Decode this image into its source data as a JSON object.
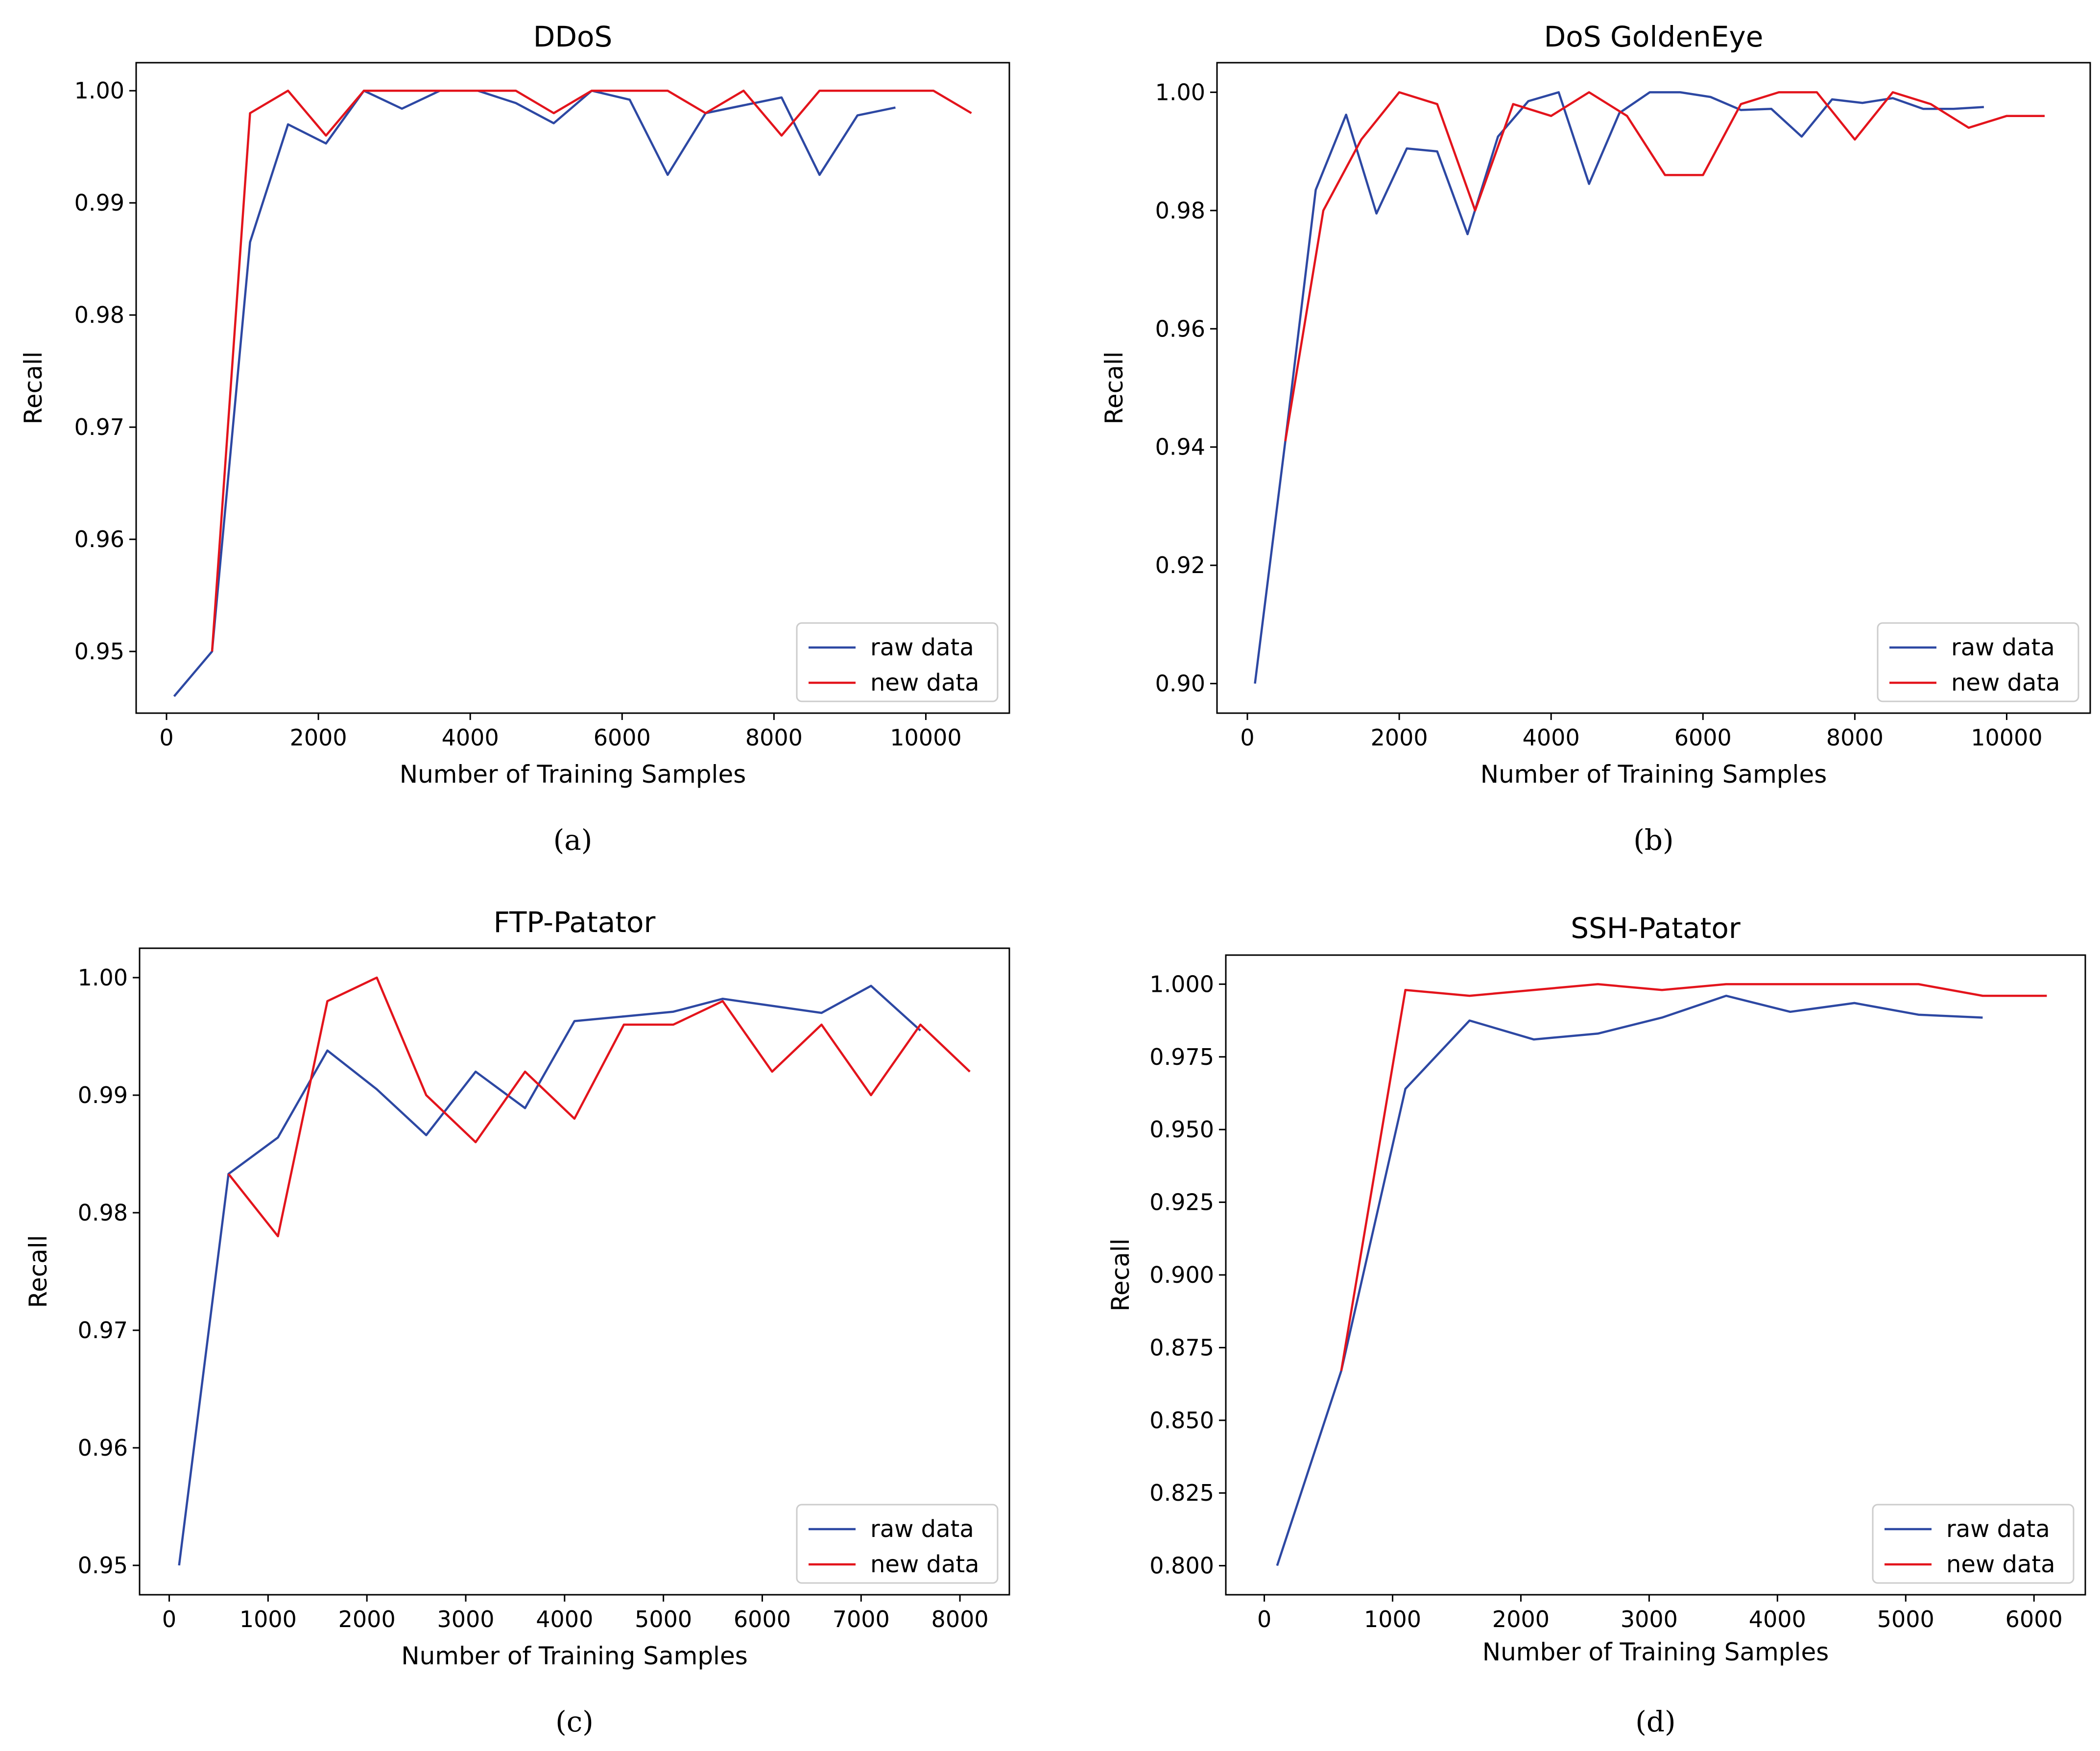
{
  "colors": {
    "raw": "#2d48a3",
    "new": "#e3141c"
  },
  "chart_data": [
    {
      "type": "line",
      "title": "DDoS",
      "caption": "(a)",
      "xlabel": "Number of Training Samples",
      "ylabel": "Recall",
      "xlim": [
        -400,
        11100
      ],
      "ylim": [
        0.9445,
        1.0025
      ],
      "xticks": [
        0,
        2000,
        4000,
        6000,
        8000,
        10000
      ],
      "xtick_labels": [
        "0",
        "2000",
        "4000",
        "6000",
        "8000",
        "10000"
      ],
      "yticks": [
        0.95,
        0.96,
        0.97,
        0.98,
        0.99,
        1.0
      ],
      "ytick_labels": [
        "0.95",
        "0.96",
        "0.97",
        "0.98",
        "0.99",
        "1.00"
      ],
      "legend": [
        "raw data",
        "new data"
      ],
      "legend_position": "lower-right",
      "series": [
        {
          "name": "raw data",
          "color_key": "raw",
          "x": [
            100,
            600,
            1100,
            1600,
            2100,
            2600,
            3100,
            3600,
            4100,
            4600,
            5100,
            5600,
            6100,
            6600,
            7100,
            7600,
            8100,
            8600,
            9100,
            9600
          ],
          "y": [
            0.946,
            0.95,
            0.9865,
            0.997,
            0.9953,
            1.0,
            0.9984,
            1.0,
            1.0,
            0.9989,
            0.9971,
            1.0,
            0.9992,
            0.9925,
            0.998,
            0.9987,
            0.9994,
            0.9925,
            0.9978,
            0.9985
          ]
        },
        {
          "name": "new data",
          "color_key": "new",
          "x": [
            600,
            1100,
            1600,
            2100,
            2600,
            3100,
            3600,
            4100,
            4600,
            5100,
            5600,
            6100,
            6600,
            7100,
            7600,
            8100,
            8600,
            9100,
            9600,
            10100,
            10600
          ],
          "y": [
            0.95,
            0.998,
            1.0,
            0.996,
            1.0,
            1.0,
            1.0,
            1.0,
            1.0,
            0.998,
            1.0,
            1.0,
            1.0,
            0.998,
            1.0,
            0.996,
            1.0,
            1.0,
            1.0,
            1.0,
            0.998
          ]
        }
      ]
    },
    {
      "type": "line",
      "title": "DoS GoldenEye",
      "caption": "(b)",
      "xlabel": "Number of Training Samples",
      "ylabel": "Recall",
      "xlim": [
        -400,
        11100
      ],
      "ylim": [
        0.895,
        1.005
      ],
      "xticks": [
        0,
        2000,
        4000,
        6000,
        8000,
        10000
      ],
      "xtick_labels": [
        "0",
        "2000",
        "4000",
        "6000",
        "8000",
        "10000"
      ],
      "yticks": [
        0.9,
        0.92,
        0.94,
        0.96,
        0.98,
        1.0
      ],
      "ytick_labels": [
        "0.90",
        "0.92",
        "0.94",
        "0.96",
        "0.98",
        "1.00"
      ],
      "legend": [
        "raw data",
        "new data"
      ],
      "legend_position": "lower-right",
      "series": [
        {
          "name": "raw data",
          "color_key": "raw",
          "x": [
            100,
            500,
            900,
            1300,
            1700,
            2100,
            2500,
            2900,
            3300,
            3700,
            4100,
            4500,
            4900,
            5300,
            5700,
            6100,
            6500,
            6900,
            7300,
            7700,
            8100,
            8500,
            8900,
            9300,
            9700
          ],
          "y": [
            0.9,
            0.941,
            0.9835,
            0.9962,
            0.9795,
            0.9905,
            0.99,
            0.976,
            0.9925,
            0.9985,
            1.0,
            0.9845,
            0.9965,
            1.0,
            1.0,
            0.9992,
            0.997,
            0.9972,
            0.9925,
            0.9988,
            0.9982,
            0.999,
            0.9972,
            0.9972,
            0.9975
          ]
        },
        {
          "name": "new data",
          "color_key": "new",
          "x": [
            500,
            1000,
            1500,
            2000,
            2500,
            3000,
            3500,
            4000,
            4500,
            5000,
            5500,
            6000,
            6500,
            7000,
            7500,
            8000,
            8500,
            9000,
            9500,
            10000,
            10500
          ],
          "y": [
            0.941,
            0.98,
            0.992,
            1.0,
            0.998,
            0.98,
            0.998,
            0.996,
            1.0,
            0.996,
            0.986,
            0.986,
            0.998,
            1.0,
            1.0,
            0.992,
            1.0,
            0.998,
            0.994,
            0.996,
            0.996
          ]
        }
      ]
    },
    {
      "type": "line",
      "title": "FTP-Patator",
      "caption": "(c)",
      "xlabel": "Number of Training Samples",
      "ylabel": "Recall",
      "xlim": [
        -300,
        8500
      ],
      "ylim": [
        0.9475,
        1.0025
      ],
      "xticks": [
        0,
        1000,
        2000,
        3000,
        4000,
        5000,
        6000,
        7000,
        8000
      ],
      "xtick_labels": [
        "0",
        "1000",
        "2000",
        "3000",
        "4000",
        "5000",
        "6000",
        "7000",
        "8000"
      ],
      "yticks": [
        0.95,
        0.96,
        0.97,
        0.98,
        0.99,
        1.0
      ],
      "ytick_labels": [
        "0.95",
        "0.96",
        "0.97",
        "0.98",
        "0.99",
        "1.00"
      ],
      "legend": [
        "raw data",
        "new data"
      ],
      "legend_position": "lower-right",
      "series": [
        {
          "name": "raw data",
          "color_key": "raw",
          "x": [
            100,
            600,
            1100,
            1600,
            2100,
            2600,
            3100,
            3600,
            4100,
            4600,
            5100,
            5600,
            6100,
            6600,
            7100,
            7600
          ],
          "y": [
            0.95,
            0.9833,
            0.9864,
            0.9938,
            0.9905,
            0.9866,
            0.992,
            0.9889,
            0.9963,
            0.9967,
            0.9971,
            0.9982,
            0.9976,
            0.997,
            0.9993,
            0.9955
          ]
        },
        {
          "name": "new data",
          "color_key": "new",
          "x": [
            600,
            1100,
            1600,
            2100,
            2600,
            3100,
            3600,
            4100,
            4600,
            5100,
            5600,
            6100,
            6600,
            7100,
            7600,
            8100
          ],
          "y": [
            0.9833,
            0.978,
            0.998,
            1.0,
            0.99,
            0.986,
            0.992,
            0.988,
            0.996,
            0.996,
            0.998,
            0.992,
            0.996,
            0.99,
            0.996,
            0.992
          ]
        }
      ]
    },
    {
      "type": "line",
      "title": "SSH-Patator",
      "caption": "(d)",
      "xlabel": "Number of Training Samples",
      "ylabel": "Recall",
      "xlim": [
        -300,
        6400
      ],
      "ylim": [
        0.79,
        1.01
      ],
      "xticks": [
        0,
        1000,
        2000,
        3000,
        4000,
        5000,
        6000
      ],
      "xtick_labels": [
        "0",
        "1000",
        "2000",
        "3000",
        "4000",
        "5000",
        "6000"
      ],
      "yticks": [
        0.8,
        0.825,
        0.85,
        0.875,
        0.9,
        0.925,
        0.95,
        0.975,
        1.0
      ],
      "ytick_labels": [
        "0.800",
        "0.825",
        "0.850",
        "0.875",
        "0.900",
        "0.925",
        "0.950",
        "0.975",
        "1.000"
      ],
      "legend": [
        "raw data",
        "new data"
      ],
      "legend_position": "lower-right",
      "series": [
        {
          "name": "raw data",
          "color_key": "raw",
          "x": [
            100,
            600,
            1100,
            1600,
            2100,
            2600,
            3100,
            3600,
            4100,
            4600,
            5100,
            5600
          ],
          "y": [
            0.8,
            0.867,
            0.964,
            0.9875,
            0.981,
            0.983,
            0.9885,
            0.996,
            0.9905,
            0.9935,
            0.9895,
            0.9885
          ]
        },
        {
          "name": "new data",
          "color_key": "new",
          "x": [
            600,
            1100,
            1600,
            2100,
            2600,
            3100,
            3600,
            4100,
            4600,
            5100,
            5600,
            6100
          ],
          "y": [
            0.867,
            0.998,
            0.996,
            0.998,
            1.0,
            0.998,
            1.0,
            1.0,
            1.0,
            1.0,
            0.996,
            0.996
          ]
        }
      ]
    }
  ]
}
